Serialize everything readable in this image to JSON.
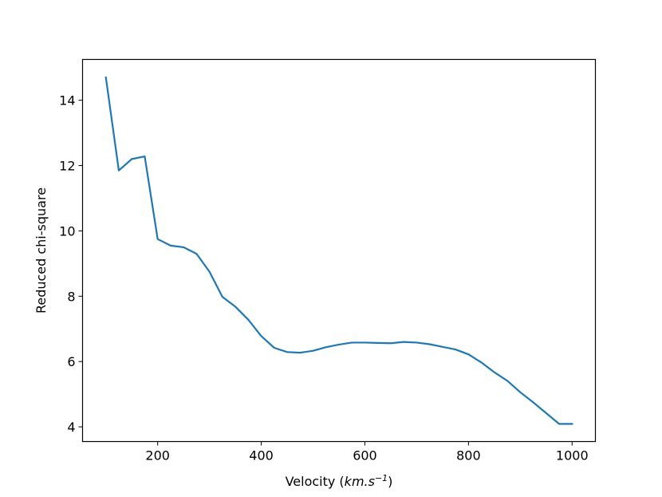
{
  "chart_data": {
    "type": "line",
    "xlabel_main": "Velocity (",
    "xlabel_unit_km": "km.s",
    "xlabel_unit_exp": "−1",
    "xlabel_close": ")",
    "ylabel": "Reduced chi-square",
    "xlim": [
      55,
      1045
    ],
    "ylim": [
      3.55,
      15.25
    ],
    "x_ticks": [
      200,
      400,
      600,
      800,
      1000
    ],
    "y_ticks": [
      4,
      6,
      8,
      10,
      12,
      14
    ],
    "x_tick_labels": [
      "200",
      "400",
      "600",
      "800",
      "1000"
    ],
    "y_tick_labels": [
      "4",
      "6",
      "8",
      "10",
      "12",
      "14"
    ],
    "grid": false,
    "series": [
      {
        "color": "#1f77b4",
        "x": [
          100,
          125,
          150,
          175,
          200,
          225,
          250,
          275,
          300,
          325,
          350,
          375,
          400,
          425,
          450,
          475,
          500,
          525,
          550,
          575,
          600,
          625,
          650,
          675,
          700,
          725,
          750,
          775,
          800,
          825,
          850,
          875,
          900,
          925,
          950,
          975,
          1000
        ],
        "y": [
          14.7,
          11.85,
          12.2,
          12.28,
          9.75,
          9.55,
          9.5,
          9.3,
          8.75,
          7.98,
          7.68,
          7.28,
          6.78,
          6.42,
          6.29,
          6.27,
          6.33,
          6.44,
          6.52,
          6.58,
          6.58,
          6.57,
          6.56,
          6.6,
          6.58,
          6.53,
          6.45,
          6.37,
          6.22,
          5.97,
          5.67,
          5.41,
          5.06,
          4.75,
          4.42,
          4.09,
          4.09
        ]
      }
    ]
  }
}
